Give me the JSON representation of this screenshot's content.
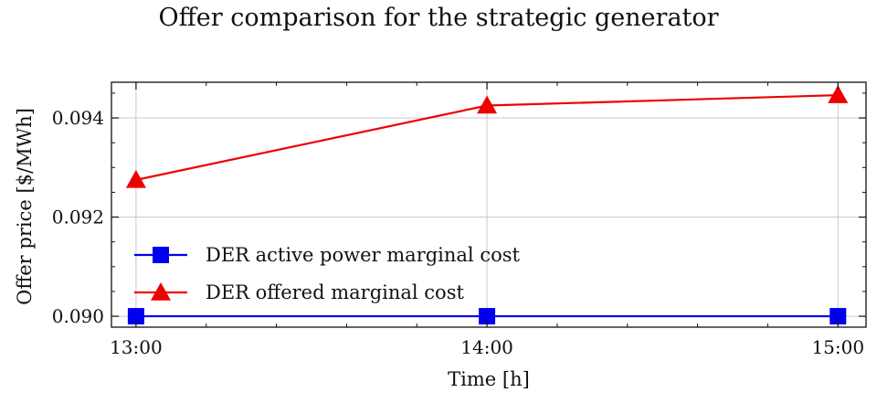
{
  "chart_data": {
    "type": "line",
    "title": "Offer comparison for the strategic generator",
    "xlabel": "Time [h]",
    "ylabel": "Offer price [$/MWh]",
    "categories": [
      "13:00",
      "14:00",
      "15:00"
    ],
    "x": [
      13,
      14,
      15
    ],
    "xlim": [
      12.93,
      15.08
    ],
    "ylim": [
      0.08978,
      0.09472
    ],
    "yticks": [
      0.09,
      0.092,
      0.094
    ],
    "ytick_labels": [
      "0.090",
      "0.092",
      "0.094"
    ],
    "grid": true,
    "legend_position": "lower-left",
    "series": [
      {
        "name": "DER active power marginal cost",
        "values": [
          0.09,
          0.09,
          0.09
        ],
        "color": "#0000ee",
        "marker": "square"
      },
      {
        "name": "DER offered marginal cost",
        "values": [
          0.09275,
          0.09425,
          0.09446
        ],
        "color": "#ee0000",
        "marker": "triangle"
      }
    ]
  }
}
